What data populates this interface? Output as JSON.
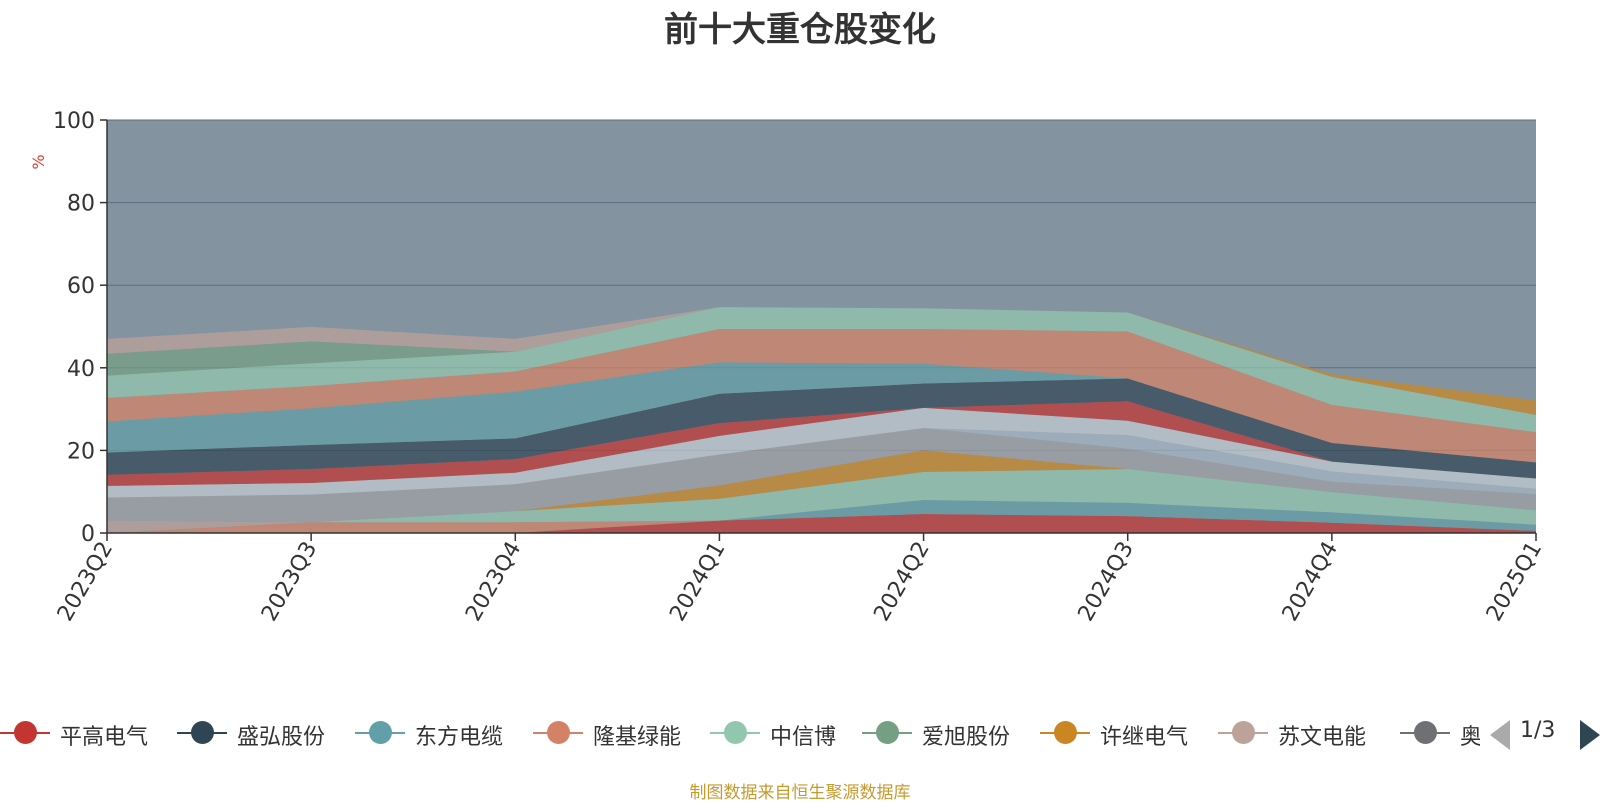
{
  "chart_data": {
    "type": "area",
    "stacked": true,
    "title": "前十大重仓股变化",
    "ylabel": "%",
    "ylim": [
      0,
      100
    ],
    "yticks": [
      0,
      20,
      40,
      60,
      80,
      100
    ],
    "categories": [
      "2023Q2",
      "2023Q3",
      "2023Q4",
      "2024Q1",
      "2024Q2",
      "2024Q3",
      "2024Q4",
      "2025Q1"
    ],
    "grid": true,
    "legend_position": "bottom",
    "series": [
      {
        "name": "平高电气",
        "color": "#c23531",
        "values": [
          0,
          0,
          0,
          3,
          4.6,
          4.1,
          2.5,
          0.5
        ]
      },
      {
        "name": "盛弘股份",
        "color": "#2f4554",
        "values": [
          0,
          0,
          0,
          0,
          0,
          0,
          0,
          0
        ]
      },
      {
        "name": "东方电缆",
        "color": "#61a0a8",
        "values": [
          0,
          0,
          0,
          0,
          3.4,
          3.2,
          2.5,
          1.5
        ]
      },
      {
        "name": "隆基绿能",
        "color": "#d48265",
        "values": [
          0,
          2.6,
          2.6,
          0,
          0,
          0,
          0,
          0
        ]
      },
      {
        "name": "中信博",
        "color": "#91c7ae",
        "values": [
          0,
          0,
          2.7,
          5.3,
          6.8,
          8.2,
          4.9,
          3.5
        ]
      },
      {
        "name": "爱旭股份",
        "color": "#749f83",
        "values": [
          0,
          0,
          0,
          0,
          0,
          0,
          0,
          0
        ]
      },
      {
        "name": "许继电气",
        "color": "#ca8622",
        "values": [
          0,
          0,
          0,
          3.2,
          5.2,
          0,
          0,
          0
        ]
      },
      {
        "name": "苏文电能",
        "color": "#bda29a",
        "values": [
          3,
          0,
          0,
          0,
          0,
          0,
          0,
          0
        ]
      },
      {
        "name": "奥特维",
        "color": "#6e7074",
        "values": [
          0,
          0,
          0,
          0,
          0,
          0,
          0,
          0
        ]
      },
      {
        "name": "",
        "color": "#9fa1a4",
        "values": [
          5.6,
          6.7,
          6.5,
          7.5,
          5.4,
          4.9,
          2.5,
          3.9
        ]
      },
      {
        "name": "",
        "color": "#ffffff",
        "values": [
          0,
          0,
          0,
          0,
          0,
          0,
          0,
          0
        ]
      },
      {
        "name": "",
        "color": "#a6b6c4",
        "values": [
          0,
          0,
          0,
          0,
          0,
          3.3,
          2.5,
          1.3
        ]
      },
      {
        "name": "",
        "color": "#c4ccd3",
        "values": [
          2.8,
          2.8,
          2.8,
          4.5,
          4.9,
          3.5,
          2.4,
          2.5
        ]
      },
      {
        "name": "",
        "color": "#c23531",
        "values": [
          2.7,
          3.4,
          3.3,
          3.1,
          0,
          4.7,
          0,
          0
        ]
      },
      {
        "name": "",
        "color": "#2f4554",
        "values": [
          5.4,
          5.8,
          5,
          7.1,
          5.9,
          5.5,
          4.5,
          3.9
        ]
      },
      {
        "name": "",
        "color": "#61a0a8",
        "values": [
          7.5,
          8.9,
          11.3,
          7.6,
          4.8,
          0,
          0,
          0
        ]
      },
      {
        "name": "",
        "color": "#d48265",
        "values": [
          5.7,
          5.4,
          4.9,
          8.1,
          8.4,
          11.4,
          9.2,
          7.3
        ]
      },
      {
        "name": "",
        "color": "#91c7ae",
        "values": [
          5.4,
          5.5,
          4.8,
          5.3,
          5,
          4.6,
          6.8,
          4.2
        ]
      },
      {
        "name": "",
        "color": "#749f83",
        "values": [
          5.3,
          5.3,
          0,
          0,
          0,
          0,
          0,
          0
        ]
      },
      {
        "name": "",
        "color": "#ca8622",
        "values": [
          0,
          0,
          0,
          0,
          0,
          0,
          0.6,
          3.5
        ]
      },
      {
        "name": "",
        "color": "#bda29a",
        "values": [
          3.6,
          3.5,
          3.1,
          0,
          0,
          0,
          0,
          0
        ]
      },
      {
        "name": "",
        "color": "#6e7074",
        "values": [
          52.5,
          52.8,
          53.7,
          45.5,
          46.6,
          46.7,
          61.6,
          66.3
        ]
      }
    ]
  },
  "legend": {
    "items": [
      {
        "name": "平高电气",
        "color": "#c23531"
      },
      {
        "name": "盛弘股份",
        "color": "#2f4554"
      },
      {
        "name": "东方电缆",
        "color": "#61a0a8"
      },
      {
        "name": "隆基绿能",
        "color": "#d48265"
      },
      {
        "name": "中信博",
        "color": "#91c7ae"
      },
      {
        "name": "爱旭股份",
        "color": "#749f83"
      },
      {
        "name": "许继电气",
        "color": "#ca8622"
      },
      {
        "name": "苏文电能",
        "color": "#bda29a"
      },
      {
        "name": "奥特维",
        "color": "#6e7074"
      }
    ],
    "page": "1/3"
  },
  "source_note": "制图数据来自恒生聚源数据库"
}
